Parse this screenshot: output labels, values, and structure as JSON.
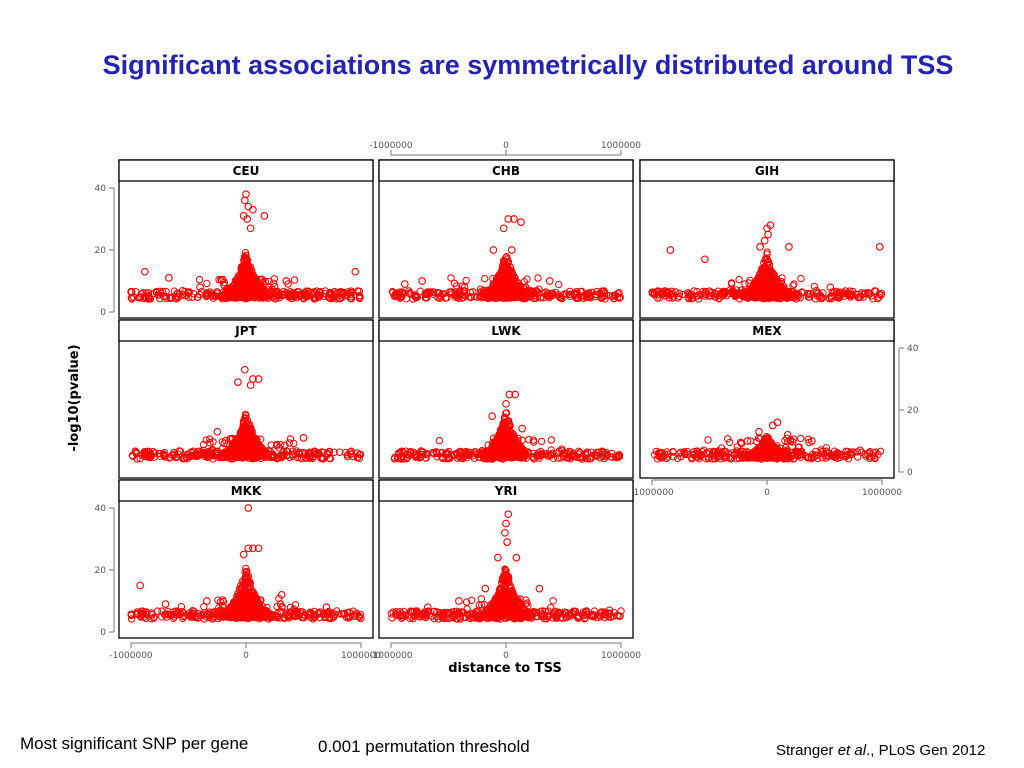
{
  "slide": {
    "title": "Significant associations are symmetrically distributed around TSS",
    "footer_left": "Most significant SNP per gene",
    "footer_middle": "0.001 permutation threshold",
    "citation_prefix": "Stranger ",
    "citation_italic": "et al",
    "citation_suffix": "., PLoS Gen 2012"
  },
  "chart_data": {
    "type": "scatter",
    "xlabel": "distance to TSS",
    "ylabel": "-log10(pvalue)",
    "xlim": [
      -1000000,
      1000000
    ],
    "ylim": [
      0,
      40
    ],
    "x_ticks": [
      "-1000000",
      "0",
      "1000000"
    ],
    "y_ticks": [
      "0",
      "20",
      "40"
    ],
    "marker_color": "#ff0000",
    "panels": [
      {
        "name": "CEU",
        "highlights": [
          [
            0,
            38
          ],
          [
            -10000,
            36
          ],
          [
            20000,
            34
          ],
          [
            60000,
            33
          ],
          [
            -20000,
            31
          ],
          [
            10000,
            30
          ],
          [
            160000,
            31
          ],
          [
            40000,
            27
          ],
          [
            -880000,
            13
          ],
          [
            -670000,
            11
          ],
          [
            950000,
            13
          ],
          [
            350000,
            10
          ],
          [
            -400000,
            8
          ]
        ]
      },
      {
        "name": "CHB",
        "highlights": [
          [
            20000,
            30
          ],
          [
            70000,
            30
          ],
          [
            130000,
            29
          ],
          [
            -20000,
            27
          ],
          [
            -110000,
            20
          ],
          [
            50000,
            20
          ],
          [
            -730000,
            10
          ],
          [
            -880000,
            9
          ],
          [
            380000,
            10
          ],
          [
            -360000,
            8
          ]
        ]
      },
      {
        "name": "GIH",
        "highlights": [
          [
            30000,
            28
          ],
          [
            0,
            27
          ],
          [
            10000,
            25
          ],
          [
            -840000,
            20
          ],
          [
            980000,
            21
          ],
          [
            -540000,
            17
          ],
          [
            190000,
            21
          ],
          [
            -20000,
            23
          ],
          [
            -60000,
            21
          ],
          [
            550000,
            8
          ]
        ]
      },
      {
        "name": "JPT",
        "highlights": [
          [
            -10000,
            33
          ],
          [
            -70000,
            29
          ],
          [
            60000,
            30
          ],
          [
            110000,
            30
          ],
          [
            40000,
            28
          ],
          [
            -250000,
            13
          ],
          [
            500000,
            11
          ],
          [
            -880000,
            6
          ]
        ]
      },
      {
        "name": "LWK",
        "highlights": [
          [
            30000,
            25
          ],
          [
            80000,
            25
          ],
          [
            -120000,
            18
          ],
          [
            0,
            22
          ],
          [
            140000,
            14
          ],
          [
            -600000,
            6
          ],
          [
            500000,
            6
          ]
        ]
      },
      {
        "name": "MEX",
        "highlights": [
          [
            90000,
            16
          ],
          [
            50000,
            15
          ],
          [
            -70000,
            13
          ],
          [
            -170000,
            10
          ],
          [
            180000,
            12
          ],
          [
            390000,
            10
          ],
          [
            -550000,
            7
          ],
          [
            810000,
            7
          ],
          [
            -940000,
            6
          ]
        ]
      },
      {
        "name": "MKK",
        "highlights": [
          [
            20000,
            40
          ],
          [
            20000,
            27
          ],
          [
            60000,
            27
          ],
          [
            110000,
            27
          ],
          [
            -20000,
            25
          ],
          [
            -920000,
            15
          ],
          [
            -700000,
            9
          ],
          [
            -340000,
            10
          ],
          [
            310000,
            12
          ],
          [
            700000,
            8
          ]
        ]
      },
      {
        "name": "YRI",
        "highlights": [
          [
            20000,
            38
          ],
          [
            0,
            35
          ],
          [
            -10000,
            32
          ],
          [
            10000,
            29
          ],
          [
            -70000,
            24
          ],
          [
            90000,
            24
          ],
          [
            -180000,
            14
          ],
          [
            290000,
            14
          ],
          [
            -410000,
            10
          ],
          [
            -680000,
            8
          ],
          [
            900000,
            7
          ]
        ]
      }
    ]
  }
}
